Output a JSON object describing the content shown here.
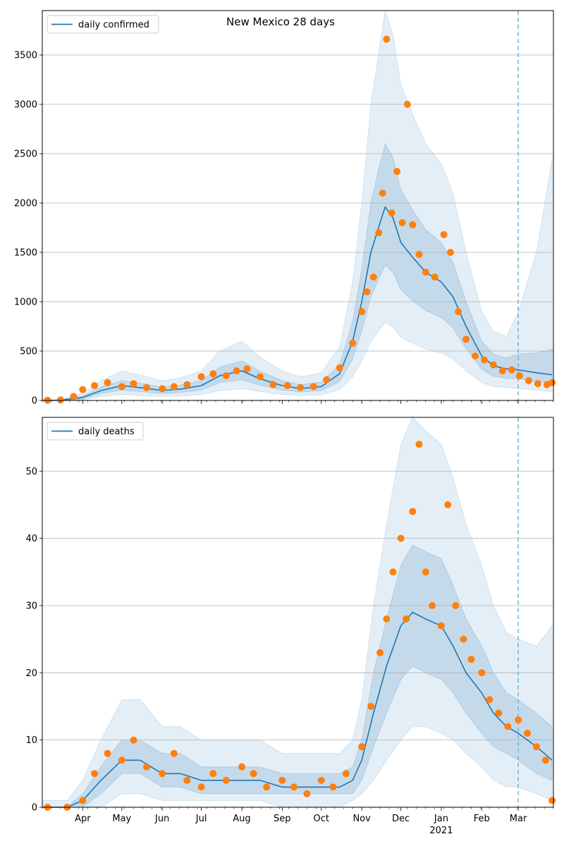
{
  "title": "New Mexico 28 days",
  "colors": {
    "model": "#1f77b4",
    "observed": "#ff7f0e",
    "band": "#1f77b4",
    "grid": "#b0b0b0",
    "marker": "#7fb3cf"
  },
  "chart_data": [
    {
      "type": "line",
      "legend": "daily confirmed",
      "legend_location": "upper-left",
      "grid": "horizontal",
      "ylim": [
        0,
        3950
      ],
      "yticks": [
        0,
        500,
        1000,
        1500,
        2000,
        2500,
        3000,
        3500
      ],
      "model_x": [
        "2020-03-01",
        "2020-03-15",
        "2020-04-01",
        "2020-04-15",
        "2020-05-01",
        "2020-05-15",
        "2020-06-01",
        "2020-06-15",
        "2020-07-01",
        "2020-07-15",
        "2020-08-01",
        "2020-08-15",
        "2020-09-01",
        "2020-09-15",
        "2020-10-01",
        "2020-10-15",
        "2020-10-25",
        "2020-11-01",
        "2020-11-08",
        "2020-11-15",
        "2020-11-19",
        "2020-11-25",
        "2020-12-01",
        "2020-12-10",
        "2020-12-20",
        "2021-01-01",
        "2021-01-10",
        "2021-01-20",
        "2021-02-01",
        "2021-02-10",
        "2021-02-20",
        "2021-03-01",
        "2021-03-15",
        "2021-03-27"
      ],
      "model_y": [
        0,
        2,
        30,
        100,
        150,
        130,
        100,
        115,
        150,
        250,
        300,
        220,
        150,
        120,
        140,
        270,
        600,
        1000,
        1500,
        1800,
        1960,
        1850,
        1600,
        1450,
        1300,
        1200,
        1050,
        750,
        450,
        350,
        320,
        310,
        280,
        260
      ],
      "band_inner_lo": [
        0,
        0,
        15,
        70,
        105,
        90,
        70,
        80,
        105,
        180,
        210,
        155,
        105,
        85,
        100,
        190,
        420,
        700,
        1050,
        1260,
        1370,
        1300,
        1120,
        1010,
        910,
        840,
        735,
        525,
        315,
        245,
        225,
        220,
        195,
        180
      ],
      "band_inner_hi": [
        0,
        5,
        45,
        135,
        200,
        175,
        135,
        155,
        200,
        335,
        400,
        295,
        200,
        160,
        185,
        360,
        800,
        1330,
        2000,
        2400,
        2600,
        2460,
        2130,
        1930,
        1730,
        1600,
        1400,
        1000,
        600,
        470,
        430,
        470,
        480,
        520
      ],
      "band_outer_lo": [
        0,
        0,
        5,
        40,
        60,
        50,
        40,
        45,
        60,
        100,
        120,
        90,
        60,
        50,
        55,
        110,
        240,
        400,
        600,
        720,
        790,
        740,
        640,
        580,
        520,
        480,
        420,
        300,
        180,
        140,
        130,
        120,
        105,
        90
      ],
      "band_outer_hi": [
        0,
        10,
        75,
        200,
        300,
        260,
        200,
        230,
        300,
        500,
        600,
        440,
        300,
        240,
        280,
        540,
        1200,
        2000,
        3000,
        3600,
        3950,
        3700,
        3200,
        2900,
        2600,
        2400,
        2100,
        1500,
        900,
        700,
        650,
        900,
        1500,
        2450
      ],
      "observed_x": [
        "2020-03-05",
        "2020-03-15",
        "2020-03-25",
        "2020-04-01",
        "2020-04-10",
        "2020-04-20",
        "2020-05-01",
        "2020-05-10",
        "2020-05-20",
        "2020-06-01",
        "2020-06-10",
        "2020-06-20",
        "2020-07-01",
        "2020-07-10",
        "2020-07-20",
        "2020-07-28",
        "2020-08-05",
        "2020-08-15",
        "2020-08-25",
        "2020-09-05",
        "2020-09-15",
        "2020-09-25",
        "2020-10-05",
        "2020-10-15",
        "2020-10-25",
        "2020-11-01",
        "2020-11-05",
        "2020-11-10",
        "2020-11-14",
        "2020-11-17",
        "2020-11-20",
        "2020-11-24",
        "2020-11-28",
        "2020-12-02",
        "2020-12-06",
        "2020-12-10",
        "2020-12-15",
        "2020-12-20",
        "2020-12-27",
        "2021-01-03",
        "2021-01-08",
        "2021-01-14",
        "2021-01-20",
        "2021-01-27",
        "2021-02-03",
        "2021-02-10",
        "2021-02-17",
        "2021-02-24",
        "2021-03-02",
        "2021-03-09",
        "2021-03-16",
        "2021-03-23",
        "2021-03-27"
      ],
      "observed_y": [
        2,
        5,
        40,
        110,
        150,
        180,
        140,
        170,
        130,
        120,
        140,
        160,
        240,
        270,
        250,
        300,
        320,
        240,
        160,
        150,
        130,
        140,
        210,
        330,
        580,
        900,
        1100,
        1250,
        1700,
        2100,
        3660,
        1900,
        2320,
        1800,
        3000,
        1780,
        1480,
        1300,
        1250,
        1680,
        1500,
        900,
        620,
        450,
        410,
        360,
        300,
        310,
        250,
        200,
        170,
        160,
        180
      ]
    },
    {
      "type": "line",
      "legend": "daily deaths",
      "legend_location": "upper-left",
      "grid": "horizontal",
      "ylim": [
        0,
        58
      ],
      "yticks": [
        0,
        10,
        20,
        30,
        40,
        50
      ],
      "xtick_labels": [
        "Apr",
        "May",
        "Jun",
        "Jul",
        "Aug",
        "Sep",
        "Oct",
        "Nov",
        "Dec",
        "Jan",
        "Feb",
        "Mar"
      ],
      "xtick_dates": [
        "2020-04-01",
        "2020-05-01",
        "2020-06-01",
        "2020-07-01",
        "2020-08-01",
        "2020-09-01",
        "2020-10-01",
        "2020-11-01",
        "2020-12-01",
        "2021-01-01",
        "2021-02-01",
        "2021-03-01"
      ],
      "year_label": "2021",
      "model_x": [
        "2020-03-01",
        "2020-03-20",
        "2020-04-01",
        "2020-04-15",
        "2020-05-01",
        "2020-05-15",
        "2020-06-01",
        "2020-06-15",
        "2020-07-01",
        "2020-07-15",
        "2020-08-01",
        "2020-08-15",
        "2020-09-01",
        "2020-09-15",
        "2020-10-01",
        "2020-10-15",
        "2020-10-25",
        "2020-11-01",
        "2020-11-10",
        "2020-11-20",
        "2020-12-01",
        "2020-12-10",
        "2020-12-20",
        "2021-01-01",
        "2021-01-10",
        "2021-01-20",
        "2021-02-01",
        "2021-02-10",
        "2021-02-20",
        "2021-03-01",
        "2021-03-15",
        "2021-03-27"
      ],
      "model_y": [
        0,
        0,
        1,
        4,
        7,
        7,
        5,
        5,
        4,
        4,
        4,
        4,
        3,
        3,
        3,
        3,
        4,
        7,
        14,
        21,
        27,
        29,
        28,
        27,
        24,
        20,
        17,
        14,
        12,
        11,
        9,
        7
      ],
      "band_inner_lo": [
        0,
        0,
        0,
        2,
        5,
        5,
        3,
        3,
        2,
        2,
        2,
        2,
        2,
        2,
        2,
        2,
        2,
        4,
        9,
        14,
        19,
        21,
        20,
        19,
        17,
        14,
        11,
        9,
        8,
        7,
        5,
        4
      ],
      "band_inner_hi": [
        0,
        0,
        2,
        6,
        10,
        10,
        8,
        8,
        6,
        6,
        6,
        6,
        5,
        5,
        5,
        5,
        6,
        10,
        20,
        28,
        36,
        39,
        38,
        37,
        33,
        28,
        24,
        20,
        17,
        16,
        14,
        12
      ],
      "band_outer_lo": [
        0,
        0,
        0,
        0,
        2,
        2,
        1,
        1,
        1,
        1,
        1,
        1,
        0,
        0,
        0,
        0,
        1,
        2,
        4,
        7,
        10,
        12,
        12,
        11,
        10,
        8,
        6,
        4,
        3,
        3,
        2,
        1
      ],
      "band_outer_hi": [
        1,
        1,
        4,
        10,
        16,
        16,
        12,
        12,
        10,
        10,
        10,
        10,
        8,
        8,
        8,
        8,
        10,
        16,
        30,
        42,
        54,
        58,
        56,
        54,
        49,
        42,
        36,
        30,
        26,
        25,
        24,
        27
      ],
      "observed_x": [
        "2020-03-05",
        "2020-03-20",
        "2020-04-01",
        "2020-04-10",
        "2020-04-20",
        "2020-05-01",
        "2020-05-10",
        "2020-05-20",
        "2020-06-01",
        "2020-06-10",
        "2020-06-20",
        "2020-07-01",
        "2020-07-10",
        "2020-07-20",
        "2020-08-01",
        "2020-08-10",
        "2020-08-20",
        "2020-09-01",
        "2020-09-10",
        "2020-09-20",
        "2020-10-01",
        "2020-10-10",
        "2020-10-20",
        "2020-11-01",
        "2020-11-08",
        "2020-11-15",
        "2020-11-20",
        "2020-11-25",
        "2020-12-01",
        "2020-12-05",
        "2020-12-10",
        "2020-12-15",
        "2020-12-20",
        "2020-12-25",
        "2021-01-01",
        "2021-01-06",
        "2021-01-12",
        "2021-01-18",
        "2021-01-24",
        "2021-02-01",
        "2021-02-07",
        "2021-02-14",
        "2021-02-21",
        "2021-03-01",
        "2021-03-08",
        "2021-03-15",
        "2021-03-22",
        "2021-03-27"
      ],
      "observed_y": [
        0,
        0,
        1,
        5,
        8,
        7,
        10,
        6,
        5,
        8,
        4,
        3,
        5,
        4,
        6,
        5,
        3,
        4,
        3,
        2,
        4,
        3,
        5,
        9,
        15,
        23,
        28,
        35,
        40,
        28,
        44,
        54,
        35,
        30,
        27,
        45,
        30,
        25,
        22,
        20,
        16,
        14,
        12,
        13,
        11,
        9,
        7,
        1
      ]
    }
  ]
}
